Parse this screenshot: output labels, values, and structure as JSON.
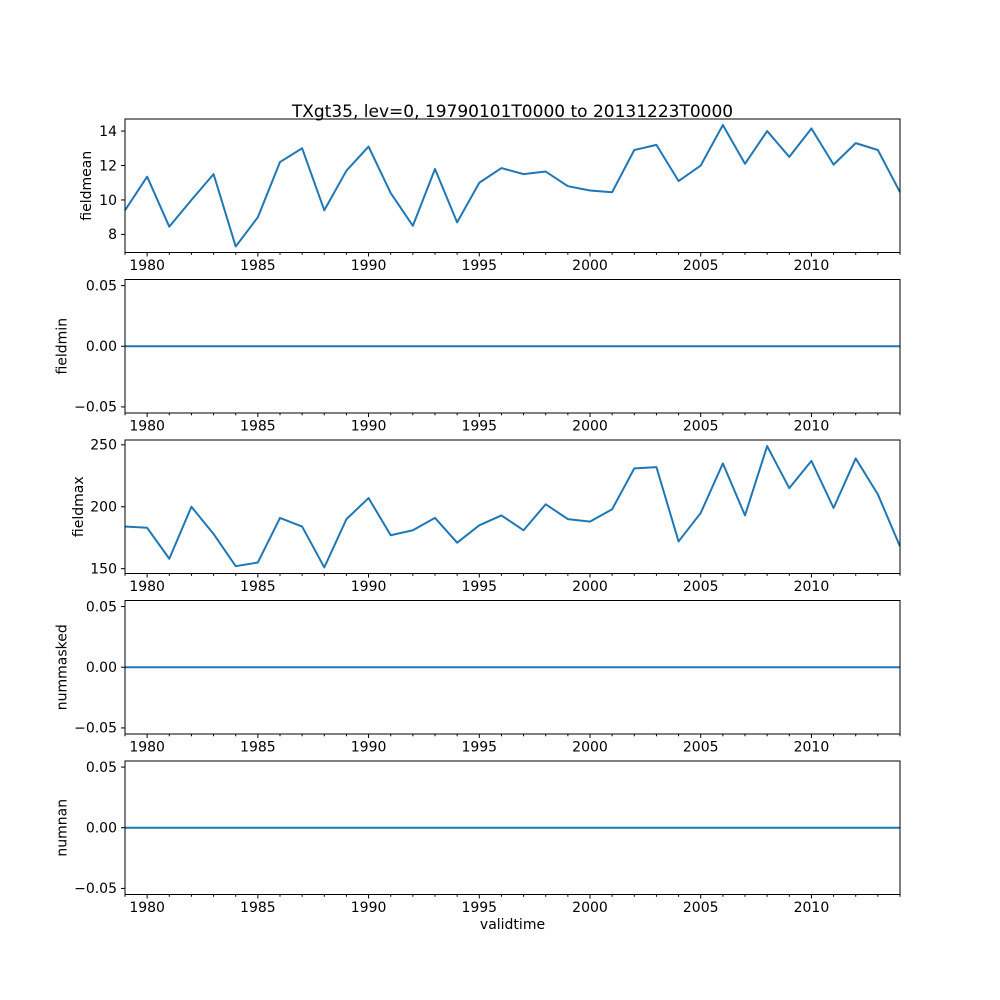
{
  "figure": {
    "title": "TXgt35, lev=0, 19790101T0000 to 20131223T0000",
    "xlabel": "validtime",
    "background_color": "#ffffff",
    "line_color": "#1f77b4",
    "axis_color": "#000000",
    "xlim": [
      1979,
      2014
    ],
    "x_ticks": [
      1980,
      1985,
      1990,
      1995,
      2000,
      2005,
      2010
    ],
    "x_tick_labels": [
      "1980",
      "1985",
      "1990",
      "1995",
      "2000",
      "2005",
      "2010"
    ]
  },
  "chart_data": [
    {
      "name": "fieldmean",
      "type": "line",
      "ylabel": "fieldmean",
      "ylim": [
        6.95,
        14.7
      ],
      "yticks": [
        8,
        10,
        12,
        14
      ],
      "ytick_labels": [
        "8",
        "10",
        "12",
        "14"
      ],
      "x": [
        1979,
        1980,
        1981,
        1982,
        1983,
        1984,
        1985,
        1986,
        1987,
        1988,
        1989,
        1990,
        1991,
        1992,
        1993,
        1994,
        1995,
        1996,
        1997,
        1998,
        1999,
        2000,
        2001,
        2002,
        2003,
        2004,
        2005,
        2006,
        2007,
        2008,
        2009,
        2010,
        2011,
        2012,
        2013,
        2014
      ],
      "y": [
        9.4,
        11.35,
        8.45,
        10.0,
        11.5,
        7.3,
        9.0,
        12.2,
        13.0,
        9.4,
        11.7,
        13.1,
        10.4,
        8.5,
        11.8,
        8.7,
        11.0,
        11.85,
        11.5,
        11.65,
        10.8,
        10.55,
        10.45,
        12.9,
        13.2,
        11.1,
        12.0,
        14.35,
        12.1,
        14.0,
        12.5,
        14.15,
        12.05,
        13.3,
        12.9,
        10.45
      ]
    },
    {
      "name": "fieldmin",
      "type": "line",
      "ylabel": "fieldmin",
      "ylim": [
        -0.055,
        0.055
      ],
      "yticks": [
        -0.05,
        0.0,
        0.05
      ],
      "ytick_labels": [
        "−0.05",
        "0.00",
        "0.05"
      ],
      "x": [
        1979,
        1980,
        1981,
        1982,
        1983,
        1984,
        1985,
        1986,
        1987,
        1988,
        1989,
        1990,
        1991,
        1992,
        1993,
        1994,
        1995,
        1996,
        1997,
        1998,
        1999,
        2000,
        2001,
        2002,
        2003,
        2004,
        2005,
        2006,
        2007,
        2008,
        2009,
        2010,
        2011,
        2012,
        2013,
        2014
      ],
      "y": [
        0,
        0,
        0,
        0,
        0,
        0,
        0,
        0,
        0,
        0,
        0,
        0,
        0,
        0,
        0,
        0,
        0,
        0,
        0,
        0,
        0,
        0,
        0,
        0,
        0,
        0,
        0,
        0,
        0,
        0,
        0,
        0,
        0,
        0,
        0,
        0
      ]
    },
    {
      "name": "fieldmax",
      "type": "line",
      "ylabel": "fieldmax",
      "ylim": [
        146.1,
        253.9
      ],
      "yticks": [
        150,
        200,
        250
      ],
      "ytick_labels": [
        "150",
        "200",
        "250"
      ],
      "x": [
        1979,
        1980,
        1981,
        1982,
        1983,
        1984,
        1985,
        1986,
        1987,
        1988,
        1989,
        1990,
        1991,
        1992,
        1993,
        1994,
        1995,
        1996,
        1997,
        1998,
        1999,
        2000,
        2001,
        2002,
        2003,
        2004,
        2005,
        2006,
        2007,
        2008,
        2009,
        2010,
        2011,
        2012,
        2013,
        2014
      ],
      "y": [
        184,
        183,
        158,
        200,
        178,
        152,
        155,
        191,
        184,
        151,
        190,
        207,
        177,
        181,
        191,
        171,
        185,
        193,
        181,
        202,
        190,
        188,
        198,
        231,
        232,
        172,
        195,
        235,
        193,
        249,
        215,
        237,
        199,
        239,
        210,
        168
      ]
    },
    {
      "name": "nummasked",
      "type": "line",
      "ylabel": "nummasked",
      "ylim": [
        -0.055,
        0.055
      ],
      "yticks": [
        -0.05,
        0.0,
        0.05
      ],
      "ytick_labels": [
        "−0.05",
        "0.00",
        "0.05"
      ],
      "x": [
        1979,
        1980,
        1981,
        1982,
        1983,
        1984,
        1985,
        1986,
        1987,
        1988,
        1989,
        1990,
        1991,
        1992,
        1993,
        1994,
        1995,
        1996,
        1997,
        1998,
        1999,
        2000,
        2001,
        2002,
        2003,
        2004,
        2005,
        2006,
        2007,
        2008,
        2009,
        2010,
        2011,
        2012,
        2013,
        2014
      ],
      "y": [
        0,
        0,
        0,
        0,
        0,
        0,
        0,
        0,
        0,
        0,
        0,
        0,
        0,
        0,
        0,
        0,
        0,
        0,
        0,
        0,
        0,
        0,
        0,
        0,
        0,
        0,
        0,
        0,
        0,
        0,
        0,
        0,
        0,
        0,
        0,
        0
      ]
    },
    {
      "name": "numnan",
      "type": "line",
      "ylabel": "numnan",
      "ylim": [
        -0.055,
        0.055
      ],
      "yticks": [
        -0.05,
        0.0,
        0.05
      ],
      "ytick_labels": [
        "−0.05",
        "0.00",
        "0.05"
      ],
      "x": [
        1979,
        1980,
        1981,
        1982,
        1983,
        1984,
        1985,
        1986,
        1987,
        1988,
        1989,
        1990,
        1991,
        1992,
        1993,
        1994,
        1995,
        1996,
        1997,
        1998,
        1999,
        2000,
        2001,
        2002,
        2003,
        2004,
        2005,
        2006,
        2007,
        2008,
        2009,
        2010,
        2011,
        2012,
        2013,
        2014
      ],
      "y": [
        0,
        0,
        0,
        0,
        0,
        0,
        0,
        0,
        0,
        0,
        0,
        0,
        0,
        0,
        0,
        0,
        0,
        0,
        0,
        0,
        0,
        0,
        0,
        0,
        0,
        0,
        0,
        0,
        0,
        0,
        0,
        0,
        0,
        0,
        0,
        0
      ]
    }
  ]
}
